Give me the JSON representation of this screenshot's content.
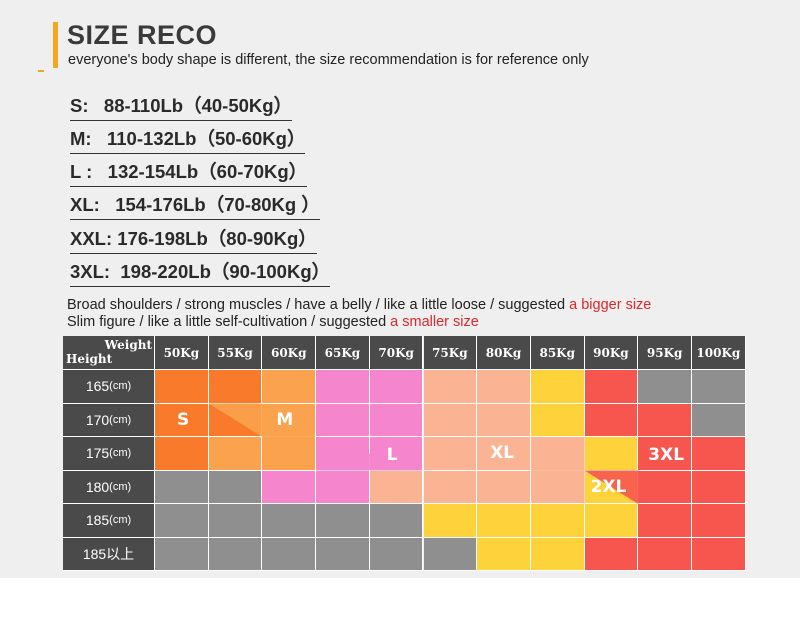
{
  "header": {
    "title": "SIZE RECO",
    "subtitle": "everyone's body shape is different, the size recommendation is for reference only",
    "accent_color": "#f2a81d"
  },
  "size_list": [
    "S:   88-110Lb（40-50Kg）",
    "M:   110-132Lb（50-60Kg）",
    "L :   132-154Lb（60-70Kg）",
    "XL:   154-176Lb（70-80Kg ）",
    "XXL: 176-198Lb（80-90Kg）",
    "3XL:  198-220Lb（90-100Kg）"
  ],
  "notes": {
    "line1_text": "Broad shoulders / strong muscles / have a belly / like a little loose / suggested ",
    "line1_highlight": "a bigger size",
    "line2_text": "Slim figure / like a little self-cultivation / suggested ",
    "line2_highlight": "a smaller size",
    "highlight_color": "#e0262b"
  },
  "table": {
    "corner_weight": "Weight",
    "corner_height": "Height",
    "weights": [
      "50Kg",
      "55Kg",
      "60Kg",
      "65Kg",
      "70Kg",
      "75Kg",
      "80Kg",
      "85Kg",
      "90Kg",
      "95Kg",
      "100Kg"
    ],
    "heights": [
      {
        "value": "165",
        "unit": "(cm)"
      },
      {
        "value": "170",
        "unit": "(cm)"
      },
      {
        "value": "175",
        "unit": "(cm)"
      },
      {
        "value": "180",
        "unit": "(cm)"
      },
      {
        "value": "185",
        "unit": "(cm)"
      },
      {
        "value": "185以上",
        "unit": ""
      }
    ],
    "colors": {
      "S": "#f87a2a",
      "M": "#fba24e",
      "L": "#f585cc",
      "XL": "#fbb493",
      "XXL": "#fdd23b",
      "3XL": "#f7564f",
      "none": "#8f8f8f"
    },
    "cells": [
      [
        "S",
        "S",
        "M",
        "L",
        "L",
        "XL",
        "XL",
        "XXL",
        "3XL",
        "none",
        "none"
      ],
      [
        "S",
        "S",
        "M",
        "L",
        "L",
        "XL",
        "XL",
        "XXL",
        "3XL",
        "3XL",
        "none"
      ],
      [
        "S",
        "M",
        "M",
        "L",
        "L",
        "XL",
        "XL",
        "XL",
        "XXL",
        "3XL",
        "3XL"
      ],
      [
        "none",
        "none",
        "L",
        "L",
        "XL",
        "XL",
        "XL",
        "XL",
        "XXL",
        "3XL",
        "3XL"
      ],
      [
        "none",
        "none",
        "none",
        "none",
        "none",
        "XXL",
        "XXL",
        "XXL",
        "XXL",
        "3XL",
        "3XL"
      ],
      [
        "none",
        "none",
        "none",
        "none",
        "none",
        "none",
        "XXL",
        "XXL",
        "3XL",
        "3XL",
        "3XL"
      ]
    ],
    "size_labels": [
      "S",
      "M",
      "L",
      "XL",
      "2XL",
      "3XL"
    ]
  }
}
